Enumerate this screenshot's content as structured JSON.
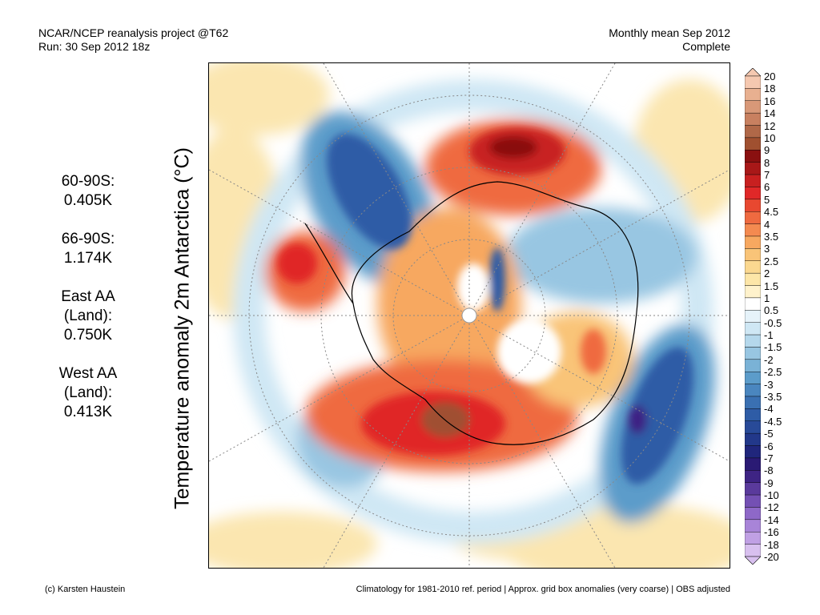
{
  "header": {
    "left_line1": "NCAR/NCEP reanalysis project @T62",
    "left_line2": "Run: 30 Sep 2012 18z",
    "right_line1": "Monthly mean Sep 2012",
    "right_line2": "Complete"
  },
  "map": {
    "ylabel": "Temperature anomaly 2m Antarctica (°C)"
  },
  "stats": [
    {
      "lines": [
        "60-90S:",
        "0.405K"
      ]
    },
    {
      "lines": [
        "66-90S:",
        "1.174K"
      ]
    },
    {
      "lines": [
        "East AA",
        "(Land):",
        "0.750K"
      ]
    },
    {
      "lines": [
        "West AA",
        "(Land):",
        "0.413K"
      ]
    }
  ],
  "colorbar": {
    "labels": [
      "20",
      "18",
      "16",
      "14",
      "12",
      "10",
      "9",
      "8",
      "7",
      "6",
      "5",
      "4.5",
      "4",
      "3.5",
      "3",
      "2.5",
      "2",
      "1.5",
      "1",
      "0.5",
      "-0.5",
      "-1",
      "-1.5",
      "-2",
      "-2.5",
      "-3",
      "-3.5",
      "-4",
      "-4.5",
      "-5",
      "-6",
      "-7",
      "-8",
      "-9",
      "-10",
      "-12",
      "-14",
      "-16",
      "-18",
      "-20"
    ],
    "colors": [
      "#f5c8b0",
      "#e8b090",
      "#d89878",
      "#c88060",
      "#b06848",
      "#a05030",
      "#8a1010",
      "#a81818",
      "#c82020",
      "#e02828",
      "#e84830",
      "#ef6a40",
      "#f48a50",
      "#f7a860",
      "#f9c478",
      "#fbd890",
      "#fde6a8",
      "#fff2cc",
      "#ffffff",
      "#e6f3fa",
      "#cfe7f4",
      "#b5d8ec",
      "#98c6e2",
      "#7ab2d6",
      "#5c9cca",
      "#4a86bf",
      "#3a70b2",
      "#2e5ca6",
      "#284a98",
      "#22388a",
      "#20267c",
      "#2a1a74",
      "#3e2484",
      "#5a3a9c",
      "#7450b4",
      "#8e68c8",
      "#a884d8",
      "#c0a0e4",
      "#d8c0ef"
    ]
  },
  "footer": {
    "left": "(c) Karsten Haustein",
    "right": "Climatology for 1981-2010 ref. period | Approx. grid box anomalies (very coarse) | OBS adjusted"
  }
}
